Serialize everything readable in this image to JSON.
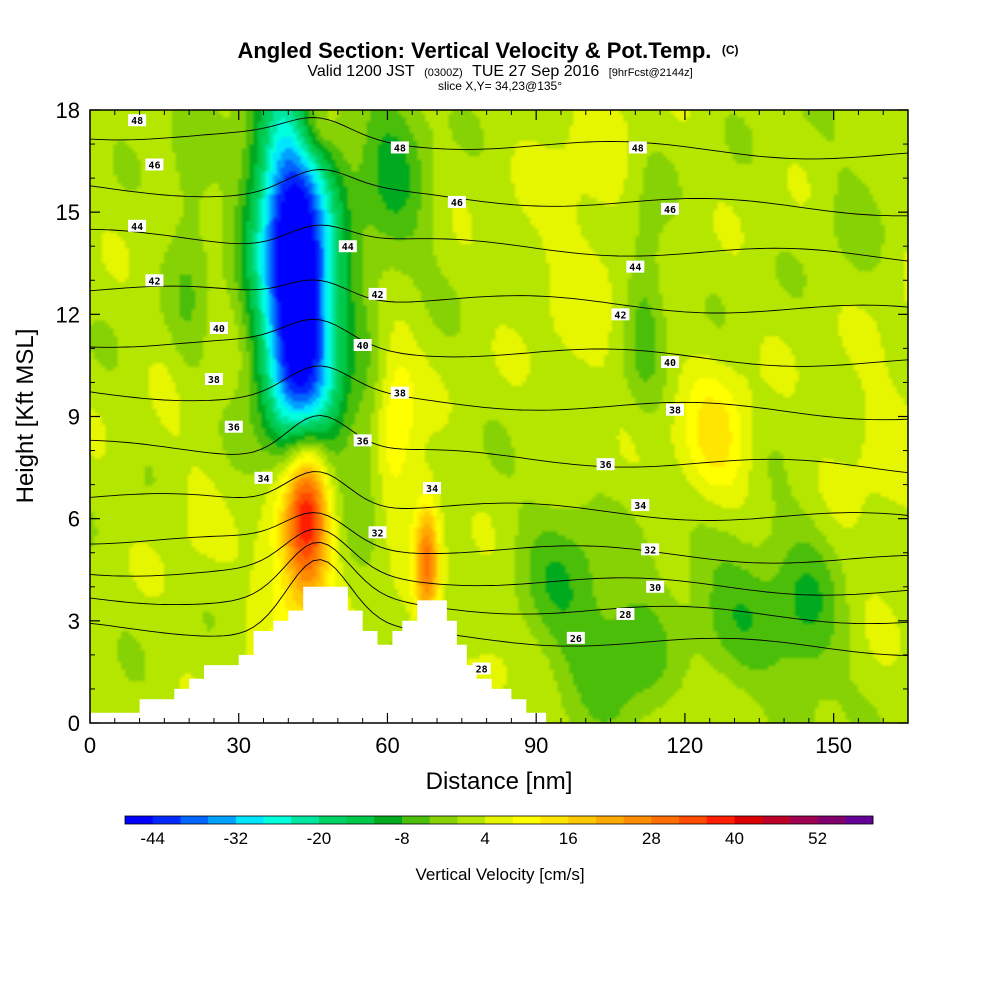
{
  "title": {
    "line1": "Angled Section: Vertical Velocity & Pot.Temp.",
    "line1_unit": "(C)",
    "line2_a": "Valid 1200 JST",
    "line2_b": "(0300Z)",
    "line2_c": "TUE 27 Sep 2016",
    "line2_d": "[9hrFcst@2144z]",
    "line3": "slice X,Y= 34,23@135°"
  },
  "chart_data": {
    "type": "heatmap",
    "xlabel": "Distance [nm]",
    "ylabel": "Height [Kft MSL]",
    "xlim": [
      0,
      165
    ],
    "ylim": [
      0,
      18
    ],
    "x_ticks": [
      0,
      30,
      60,
      90,
      120,
      150
    ],
    "y_ticks": [
      0,
      3,
      6,
      9,
      12,
      15,
      18
    ],
    "colorbar": {
      "label": "Vertical Velocity [cm/s]",
      "tick_values": [
        -44,
        -32,
        -20,
        -8,
        4,
        16,
        28,
        40,
        52
      ],
      "tick_labels": [
        "-44",
        "-32",
        "-20",
        "-8",
        "4",
        "16",
        "28",
        "40",
        "52"
      ],
      "min": -48,
      "step": 4,
      "colors": [
        "#0000ff",
        "#0028ff",
        "#0064ff",
        "#00a0ff",
        "#00e6ff",
        "#00ffdc",
        "#00e6a0",
        "#00d264",
        "#00c848",
        "#00aa1e",
        "#4bbe0a",
        "#87d205",
        "#b4e600",
        "#e6f500",
        "#ffff00",
        "#ffe600",
        "#ffc800",
        "#ffaa00",
        "#ff8c00",
        "#ff6e00",
        "#ff4b00",
        "#ff1e00",
        "#dc0000",
        "#be0028",
        "#a00050",
        "#82006e",
        "#640096"
      ]
    },
    "terrain_profile": [
      [
        0,
        0.3
      ],
      [
        10,
        0.3
      ],
      [
        10,
        0.7
      ],
      [
        17,
        0.7
      ],
      [
        17,
        1.0
      ],
      [
        20,
        1.0
      ],
      [
        20,
        1.3
      ],
      [
        23,
        1.3
      ],
      [
        23,
        1.7
      ],
      [
        30,
        1.7
      ],
      [
        30,
        2.0
      ],
      [
        33,
        2.0
      ],
      [
        33,
        2.7
      ],
      [
        37,
        2.7
      ],
      [
        37,
        3.0
      ],
      [
        40,
        3.0
      ],
      [
        40,
        3.3
      ],
      [
        43,
        3.3
      ],
      [
        43,
        4.0
      ],
      [
        52,
        4.0
      ],
      [
        52,
        3.3
      ],
      [
        55,
        3.3
      ],
      [
        55,
        2.7
      ],
      [
        58,
        2.7
      ],
      [
        58,
        2.3
      ],
      [
        61,
        2.3
      ],
      [
        61,
        2.7
      ],
      [
        63,
        2.7
      ],
      [
        63,
        3.0
      ],
      [
        66,
        3.0
      ],
      [
        66,
        3.6
      ],
      [
        72,
        3.6
      ],
      [
        72,
        3.0
      ],
      [
        74,
        3.0
      ],
      [
        74,
        2.3
      ],
      [
        76,
        2.3
      ],
      [
        76,
        1.7
      ],
      [
        78,
        1.7
      ],
      [
        78,
        1.3
      ],
      [
        81,
        1.3
      ],
      [
        81,
        1.0
      ],
      [
        85,
        1.0
      ],
      [
        85,
        0.7
      ],
      [
        88,
        0.7
      ],
      [
        88,
        0.3
      ],
      [
        92,
        0.3
      ],
      [
        92,
        0.0
      ],
      [
        165,
        0.0
      ]
    ],
    "features": [
      {
        "kind": "downdraft",
        "x": 42.5,
        "y": 12.0,
        "peak": -48,
        "sx": 5.5,
        "sy": 3.6
      },
      {
        "kind": "downdraft",
        "x": 39.0,
        "y": 15.5,
        "peak": -22,
        "sx": 5.0,
        "sy": 2.6
      },
      {
        "kind": "downdraft",
        "x": 44.0,
        "y": 9.5,
        "peak": -10,
        "sx": 4.5,
        "sy": 1.6
      },
      {
        "kind": "downdraft",
        "x": 61.0,
        "y": 16.0,
        "peak": -10,
        "sx": 5.0,
        "sy": 2.6
      },
      {
        "kind": "downdraft",
        "x": 57.0,
        "y": 8.5,
        "peak": -8,
        "sx": 3.0,
        "sy": 2.0
      },
      {
        "kind": "downdraft",
        "x": 112.0,
        "y": 12.5,
        "peak": -8,
        "sx": 3.0,
        "sy": 2.2
      },
      {
        "kind": "downdraft",
        "x": 95.0,
        "y": 4.5,
        "peak": -8,
        "sx": 6.0,
        "sy": 1.6
      },
      {
        "kind": "downdraft",
        "x": 108.0,
        "y": 2.0,
        "peak": -10,
        "sx": 9.0,
        "sy": 1.4
      },
      {
        "kind": "downdraft",
        "x": 130.0,
        "y": 3.5,
        "peak": -8,
        "sx": 9.0,
        "sy": 1.8
      },
      {
        "kind": "downdraft",
        "x": 145.0,
        "y": 3.0,
        "peak": -8,
        "sx": 5.0,
        "sy": 2.0
      },
      {
        "kind": "downdraft",
        "x": 155.0,
        "y": 14.0,
        "peak": -4,
        "sx": 6.0,
        "sy": 3.0
      },
      {
        "kind": "downdraft",
        "x": 20.0,
        "y": 13.0,
        "peak": -6,
        "sx": 3.0,
        "sy": 4.0
      },
      {
        "kind": "updraft",
        "x": 44.0,
        "y": 6.5,
        "peak": 36,
        "sx": 3.2,
        "sy": 1.8
      },
      {
        "kind": "updraft",
        "x": 41.0,
        "y": 5.5,
        "peak": 16,
        "sx": 5.0,
        "sy": 2.4
      },
      {
        "kind": "updraft",
        "x": 68.0,
        "y": 4.8,
        "peak": 26,
        "sx": 1.8,
        "sy": 1.3
      },
      {
        "kind": "updraft",
        "x": 61.0,
        "y": 9.0,
        "peak": 12,
        "sx": 3.5,
        "sy": 2.2
      },
      {
        "kind": "updraft",
        "x": 126.0,
        "y": 8.2,
        "peak": 12,
        "sx": 5.0,
        "sy": 1.4
      },
      {
        "kind": "updraft",
        "x": 45.0,
        "y": 17.5,
        "peak": 12,
        "sx": 3.0,
        "sy": 0.8
      },
      {
        "kind": "updraft",
        "x": 158.0,
        "y": 10.0,
        "peak": 4,
        "sx": 8.0,
        "sy": 4.0
      },
      {
        "kind": "updraft",
        "x": 100.0,
        "y": 14.5,
        "peak": 4,
        "sx": 8.0,
        "sy": 3.0
      },
      {
        "kind": "updraft",
        "x": 20.0,
        "y": 8.0,
        "peak": 4,
        "sx": 4.0,
        "sy": 3.0
      },
      {
        "kind": "updraft",
        "x": 80.0,
        "y": 1.5,
        "peak": 4,
        "sx": 4.0,
        "sy": 1.5
      },
      {
        "kind": "updraft",
        "x": 120.0,
        "y": 1.5,
        "peak": 6,
        "sx": 5.0,
        "sy": 1.5
      }
    ],
    "isentropes": [
      {
        "label": "26",
        "y_base": 2.5,
        "y_crest": 4.6
      },
      {
        "label": "28",
        "y_base": 3.4,
        "y_crest": 5.0
      },
      {
        "label": "30",
        "y_base": 4.2,
        "y_crest": 5.4
      },
      {
        "label": "32",
        "y_base": 5.1,
        "y_crest": 6.0
      },
      {
        "label": "34",
        "y_base": 6.3,
        "y_crest": 7.4
      },
      {
        "label": "36",
        "y_base": 7.8,
        "y_crest": 9.0
      },
      {
        "label": "38",
        "y_base": 9.4,
        "y_crest": 10.2
      },
      {
        "label": "40",
        "y_base": 10.9,
        "y_crest": 11.6
      },
      {
        "label": "42",
        "y_base": 12.4,
        "y_crest": 13.0
      },
      {
        "label": "44",
        "y_base": 14.0,
        "y_crest": 14.6
      },
      {
        "label": "46",
        "y_base": 15.4,
        "y_crest": 16.0
      },
      {
        "label": "48",
        "y_base": 17.0,
        "y_crest": 17.5
      }
    ],
    "contour_labels": [
      {
        "text": "48",
        "x": 9.5,
        "y": 17.7
      },
      {
        "text": "48",
        "x": 62.5,
        "y": 16.9
      },
      {
        "text": "48",
        "x": 110.5,
        "y": 16.9
      },
      {
        "text": "46",
        "x": 13,
        "y": 16.4
      },
      {
        "text": "46",
        "x": 74,
        "y": 15.3
      },
      {
        "text": "46",
        "x": 117,
        "y": 15.1
      },
      {
        "text": "44",
        "x": 9.5,
        "y": 14.6
      },
      {
        "text": "44",
        "x": 52,
        "y": 14.0
      },
      {
        "text": "44",
        "x": 110,
        "y": 13.4
      },
      {
        "text": "42",
        "x": 13,
        "y": 13.0
      },
      {
        "text": "42",
        "x": 58,
        "y": 12.6
      },
      {
        "text": "42",
        "x": 107,
        "y": 12.0
      },
      {
        "text": "40",
        "x": 26,
        "y": 11.6
      },
      {
        "text": "40",
        "x": 55,
        "y": 11.1
      },
      {
        "text": "40",
        "x": 117,
        "y": 10.6
      },
      {
        "text": "38",
        "x": 25,
        "y": 10.1
      },
      {
        "text": "38",
        "x": 62.5,
        "y": 9.7
      },
      {
        "text": "38",
        "x": 118,
        "y": 9.2
      },
      {
        "text": "36",
        "x": 29,
        "y": 8.7
      },
      {
        "text": "36",
        "x": 55,
        "y": 8.3
      },
      {
        "text": "36",
        "x": 104,
        "y": 7.6
      },
      {
        "text": "34",
        "x": 35,
        "y": 7.2
      },
      {
        "text": "34",
        "x": 69,
        "y": 6.9
      },
      {
        "text": "34",
        "x": 111,
        "y": 6.4
      },
      {
        "text": "32",
        "x": 58,
        "y": 5.6
      },
      {
        "text": "32",
        "x": 113,
        "y": 5.1
      },
      {
        "text": "30",
        "x": 114,
        "y": 4.0
      },
      {
        "text": "28",
        "x": 108,
        "y": 3.2
      },
      {
        "text": "28",
        "x": 79,
        "y": 1.6
      },
      {
        "text": "26",
        "x": 98,
        "y": 2.5
      }
    ]
  }
}
